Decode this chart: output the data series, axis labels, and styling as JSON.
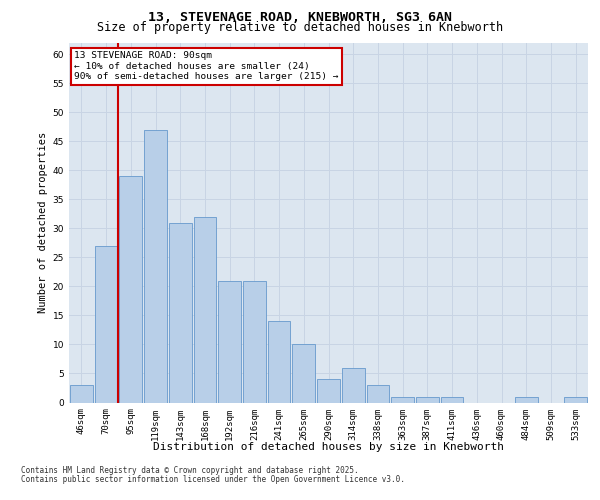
{
  "title1": "13, STEVENAGE ROAD, KNEBWORTH, SG3 6AN",
  "title2": "Size of property relative to detached houses in Knebworth",
  "xlabel": "Distribution of detached houses by size in Knebworth",
  "ylabel": "Number of detached properties",
  "categories": [
    "46sqm",
    "70sqm",
    "95sqm",
    "119sqm",
    "143sqm",
    "168sqm",
    "192sqm",
    "216sqm",
    "241sqm",
    "265sqm",
    "290sqm",
    "314sqm",
    "338sqm",
    "363sqm",
    "387sqm",
    "411sqm",
    "436sqm",
    "460sqm",
    "484sqm",
    "509sqm",
    "533sqm"
  ],
  "values": [
    3,
    27,
    39,
    47,
    31,
    32,
    21,
    21,
    14,
    10,
    4,
    6,
    3,
    1,
    1,
    1,
    0,
    0,
    1,
    0,
    1
  ],
  "bar_color": "#b8cfe8",
  "bar_edge_color": "#6699cc",
  "grid_color": "#c8d4e4",
  "bg_color": "#dce6f0",
  "vline_color": "#cc0000",
  "vline_pos": 1.5,
  "annotation_lines": [
    "13 STEVENAGE ROAD: 90sqm",
    "← 10% of detached houses are smaller (24)",
    "90% of semi-detached houses are larger (215) →"
  ],
  "annotation_box_color": "#cc0000",
  "footer1": "Contains HM Land Registry data © Crown copyright and database right 2025.",
  "footer2": "Contains public sector information licensed under the Open Government Licence v3.0.",
  "ylim": [
    0,
    62
  ],
  "yticks": [
    0,
    5,
    10,
    15,
    20,
    25,
    30,
    35,
    40,
    45,
    50,
    55,
    60
  ],
  "title1_fontsize": 9.5,
  "title2_fontsize": 8.5,
  "ylabel_fontsize": 7.5,
  "xlabel_fontsize": 8,
  "tick_fontsize": 6.5,
  "footer_fontsize": 5.5,
  "ann_fontsize": 6.8
}
